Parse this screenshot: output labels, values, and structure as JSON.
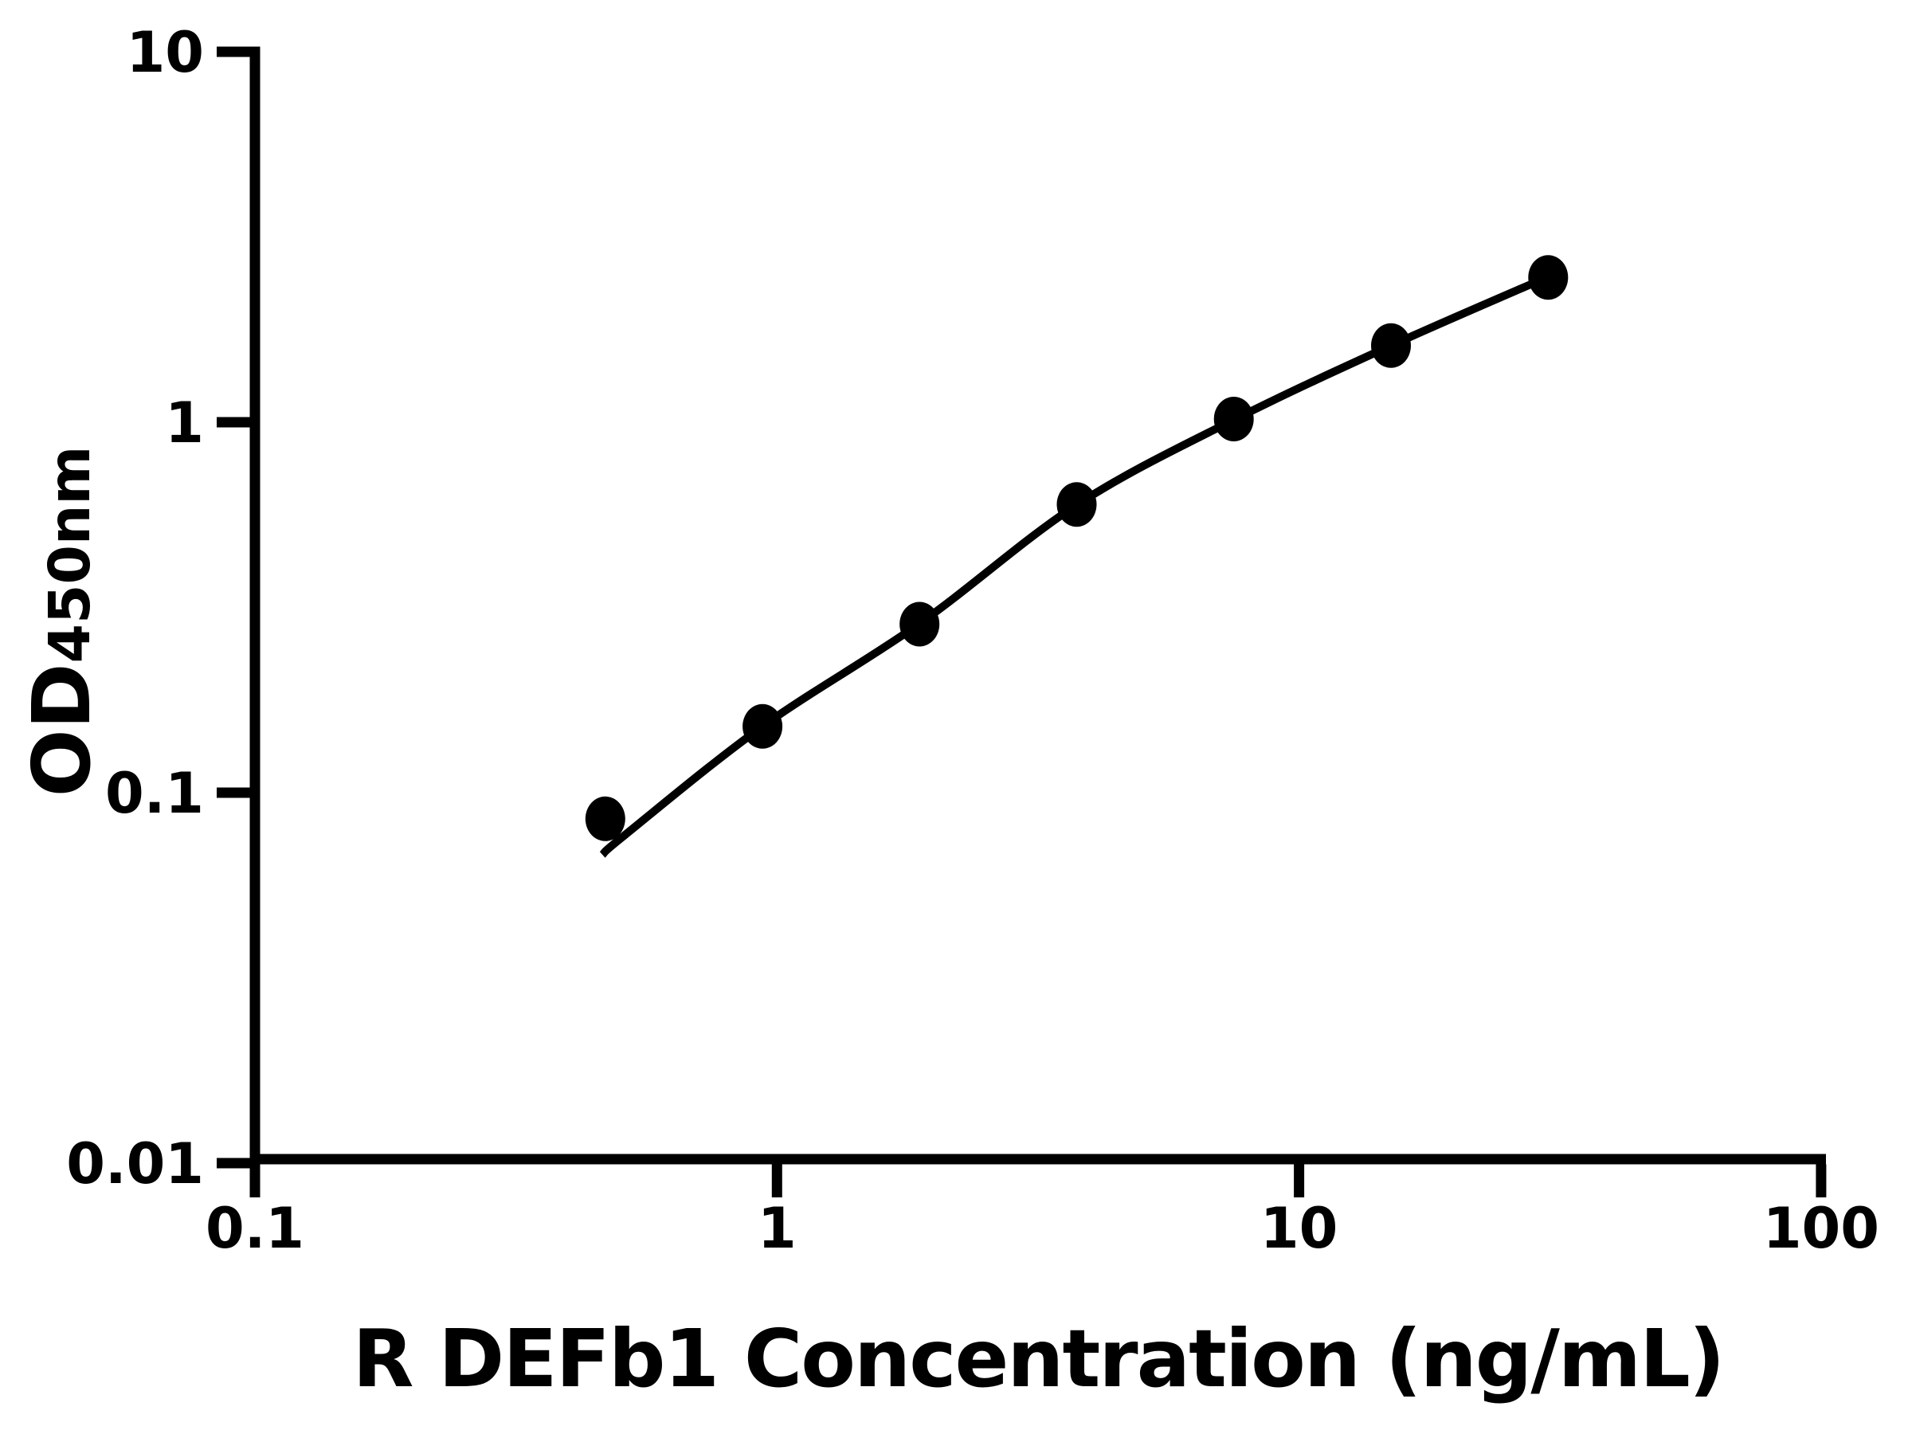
{
  "chart_data": {
    "type": "scatter",
    "title": "",
    "xlabel": "R DEFb1 Concentration (ng/mL)",
    "ylabel_main": "OD",
    "ylabel_sub": "450nm",
    "x_scale": "log",
    "y_scale": "log",
    "xlim": [
      0.1,
      100
    ],
    "ylim": [
      0.01,
      10
    ],
    "x_ticks": [
      0.1,
      1,
      10,
      100
    ],
    "x_tick_labels": [
      "0.1",
      "1",
      "10",
      "100"
    ],
    "y_ticks": [
      10,
      1,
      0.1,
      0.01
    ],
    "y_tick_labels": [
      "10",
      "1",
      "0.1",
      "0.01"
    ],
    "grid": false,
    "legend": false,
    "series": [
      {
        "name": "standard-curve-points",
        "marker": "filled-circle",
        "x": [
          0.469,
          0.938,
          1.875,
          3.75,
          7.5,
          15,
          30
        ],
        "y": [
          0.085,
          0.151,
          0.285,
          0.6,
          1.02,
          1.61,
          2.46
        ]
      }
    ],
    "fit_curve": {
      "name": "fitted-curve",
      "x": [
        0.463,
        0.512,
        0.938,
        1.875,
        3.75,
        7.5,
        15,
        30
      ],
      "y": [
        0.068,
        0.077,
        0.151,
        0.286,
        0.598,
        1.015,
        1.61,
        2.47
      ]
    },
    "colors": {
      "points": "#000000",
      "line": "#000000",
      "axis": "#000000",
      "background": "#ffffff"
    }
  }
}
